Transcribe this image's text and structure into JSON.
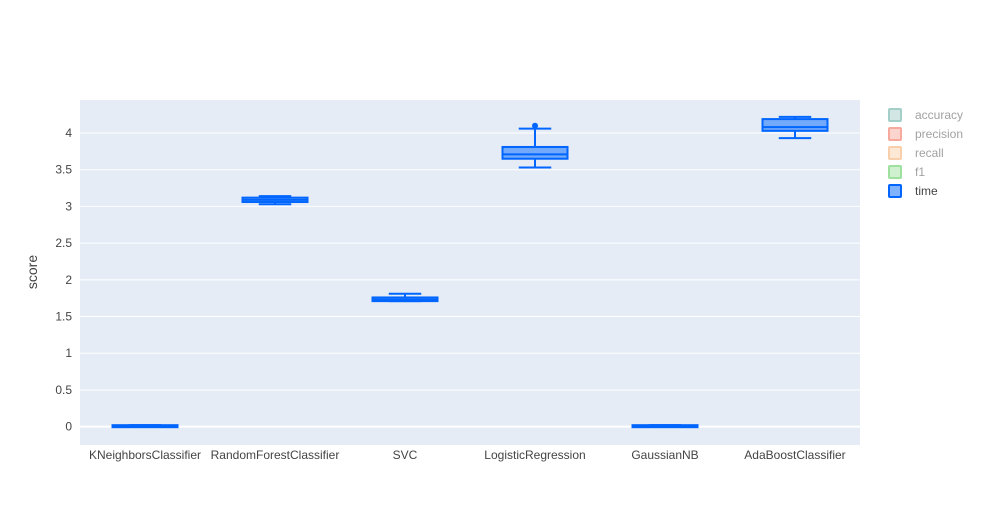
{
  "chart_data": {
    "type": "box",
    "ylabel": "score",
    "ylim": [
      -0.25,
      4.45
    ],
    "yticks": [
      {
        "value": 0,
        "label": "0"
      },
      {
        "value": 0.5,
        "label": "0.5"
      },
      {
        "value": 1,
        "label": "1"
      },
      {
        "value": 1.5,
        "label": "1.5"
      },
      {
        "value": 2,
        "label": "2"
      },
      {
        "value": 2.5,
        "label": "2.5"
      },
      {
        "value": 3,
        "label": "3"
      },
      {
        "value": 3.5,
        "label": "3.5"
      },
      {
        "value": 4,
        "label": "4"
      }
    ],
    "categories": [
      "KNeighborsClassifier",
      "RandomForestClassifier",
      "SVC",
      "LogisticRegression",
      "GaussianNB",
      "AdaBoostClassifier"
    ],
    "grid": true,
    "legend_position": "top-right",
    "series": [
      {
        "name": "accuracy",
        "color": "#4c9f93",
        "visible": false
      },
      {
        "name": "precision",
        "color": "#ef553b",
        "visible": false
      },
      {
        "name": "recall",
        "color": "#f4a15a",
        "visible": false
      },
      {
        "name": "f1",
        "color": "#3fc53f",
        "visible": false
      },
      {
        "name": "time",
        "color": "#0066ff",
        "visible": true,
        "boxes": [
          {
            "category": "KNeighborsClassifier",
            "min": 0.0,
            "q1": 0.0,
            "median": 0.01,
            "q3": 0.02,
            "max": 0.02,
            "outliers": []
          },
          {
            "category": "RandomForestClassifier",
            "min": 3.03,
            "q1": 3.06,
            "median": 3.09,
            "q3": 3.12,
            "max": 3.14,
            "outliers": []
          },
          {
            "category": "SVC",
            "min": 1.71,
            "q1": 1.71,
            "median": 1.73,
            "q3": 1.76,
            "max": 1.81,
            "outliers": []
          },
          {
            "category": "LogisticRegression",
            "min": 3.53,
            "q1": 3.65,
            "median": 3.71,
            "q3": 3.81,
            "max": 4.06,
            "outliers": [
              4.1
            ]
          },
          {
            "category": "GaussianNB",
            "min": 0.0,
            "q1": 0.0,
            "median": 0.01,
            "q3": 0.02,
            "max": 0.02,
            "outliers": []
          },
          {
            "category": "AdaBoostClassifier",
            "min": 3.93,
            "q1": 4.03,
            "median": 4.08,
            "q3": 4.19,
            "max": 4.22,
            "outliers": []
          }
        ]
      }
    ]
  }
}
